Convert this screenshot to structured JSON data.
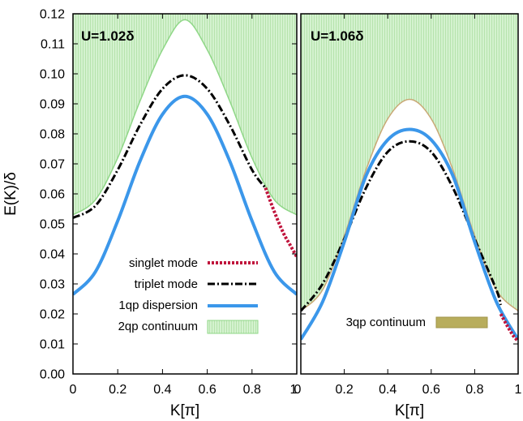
{
  "chart_data": [
    {
      "type": "line",
      "panel": "left",
      "title": "U=1.02δ",
      "xlabel": "K[π]",
      "ylabel": "E(K)/δ",
      "xlim": [
        0,
        1
      ],
      "ylim": [
        0,
        0.12
      ],
      "xticks": [
        "0",
        "0.2",
        "0.4",
        "0.6",
        "0.8",
        "1"
      ],
      "yticks": [
        "0.00",
        "0.01",
        "0.02",
        "0.03",
        "0.04",
        "0.05",
        "0.06",
        "0.07",
        "0.08",
        "0.09",
        "0.10",
        "0.11",
        "0.12"
      ],
      "grid": false,
      "legend_position": "bottom-left",
      "continuum_2qp": {
        "name": "2qp continuum",
        "x": [
          0.0,
          0.1,
          0.2,
          0.3,
          0.4,
          0.5,
          0.6,
          0.7,
          0.8,
          0.9,
          1.0
        ],
        "lower": [
          0.053,
          0.058,
          0.072,
          0.091,
          0.108,
          0.118,
          0.108,
          0.091,
          0.072,
          0.058,
          0.053
        ],
        "upper": 0.12
      },
      "series": [
        {
          "name": "singlet mode",
          "color": "#c0143c",
          "style": "dotted",
          "x": [
            0.86,
            0.9,
            0.94,
            0.97,
            1.0
          ],
          "values": [
            0.062,
            0.054,
            0.047,
            0.043,
            0.039
          ]
        },
        {
          "name": "triplet mode",
          "color": "#000000",
          "style": "dashdot",
          "x": [
            0.0,
            0.1,
            0.2,
            0.3,
            0.4,
            0.5,
            0.6,
            0.7,
            0.8,
            0.86
          ],
          "values": [
            0.052,
            0.056,
            0.068,
            0.083,
            0.095,
            0.0995,
            0.095,
            0.083,
            0.068,
            0.062
          ]
        },
        {
          "name": "1qp dispersion",
          "color": "#3b97ea",
          "style": "solid",
          "x": [
            0.0,
            0.1,
            0.2,
            0.3,
            0.4,
            0.5,
            0.6,
            0.7,
            0.8,
            0.9,
            1.0
          ],
          "values": [
            0.0265,
            0.034,
            0.051,
            0.071,
            0.0865,
            0.0925,
            0.0865,
            0.071,
            0.051,
            0.034,
            0.0265
          ]
        }
      ]
    },
    {
      "type": "line",
      "panel": "right",
      "title": "U=1.06δ",
      "xlabel": "K[π]",
      "xlim": [
        0,
        1
      ],
      "ylim": [
        0,
        0.12
      ],
      "xticks": [
        "0",
        "0.2",
        "0.4",
        "0.6",
        "0.8",
        "1"
      ],
      "grid": false,
      "legend_position": "bottom-center",
      "continuum_2qp": {
        "x": [
          0.0,
          0.1,
          0.2,
          0.3,
          0.4,
          0.5,
          0.6,
          0.7,
          0.8,
          0.9,
          1.0
        ],
        "lower": [
          0.021,
          0.028,
          0.046,
          0.068,
          0.085,
          0.0915,
          0.085,
          0.068,
          0.046,
          0.028,
          0.021
        ],
        "upper": 0.12
      },
      "continuum_3qp": {
        "name": "3qp continuum",
        "color": "#b8ad5c"
      },
      "series": [
        {
          "name": "singlet mode",
          "color": "#c0143c",
          "style": "dotted",
          "x": [
            0.92,
            0.95,
            0.98,
            1.0
          ],
          "values": [
            0.02,
            0.016,
            0.0125,
            0.011
          ]
        },
        {
          "name": "triplet mode",
          "color": "#000000",
          "style": "dashdot",
          "x": [
            0.0,
            0.1,
            0.2,
            0.3,
            0.4,
            0.5,
            0.6,
            0.7,
            0.8,
            0.9,
            0.92
          ],
          "values": [
            0.021,
            0.03,
            0.045,
            0.062,
            0.074,
            0.0775,
            0.074,
            0.062,
            0.045,
            0.028,
            0.023
          ]
        },
        {
          "name": "1qp dispersion",
          "color": "#3b97ea",
          "style": "solid",
          "x": [
            0.0,
            0.1,
            0.2,
            0.3,
            0.4,
            0.5,
            0.6,
            0.7,
            0.8,
            0.9,
            1.0
          ],
          "values": [
            0.0115,
            0.024,
            0.044,
            0.066,
            0.078,
            0.0815,
            0.078,
            0.066,
            0.044,
            0.024,
            0.0115
          ]
        }
      ]
    }
  ],
  "colors": {
    "continuum_fill": "#d4f2cf",
    "continuum_stripe": "#b6e3ad",
    "continuum_edge": "#8fd787"
  }
}
